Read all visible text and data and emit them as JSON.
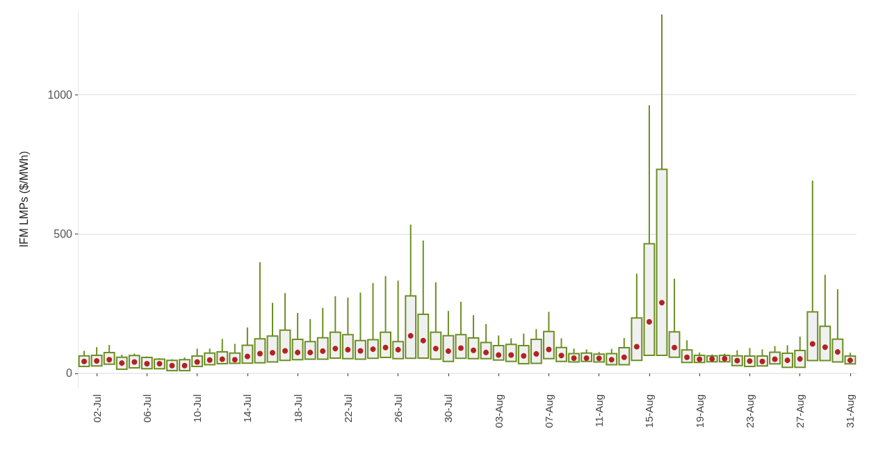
{
  "chart_data": {
    "type": "box",
    "ylabel": "IFM LMPs ($/MWh)",
    "categories": [
      null,
      "02-Jul",
      null,
      null,
      null,
      "06-Jul",
      null,
      null,
      null,
      "10-Jul",
      null,
      null,
      null,
      "14-Jul",
      null,
      null,
      null,
      "18-Jul",
      null,
      null,
      null,
      "22-Jul",
      null,
      null,
      null,
      "26-Jul",
      null,
      null,
      null,
      "30-Jul",
      null,
      null,
      null,
      "03-Aug",
      null,
      null,
      null,
      "07-Aug",
      null,
      null,
      null,
      "11-Aug",
      null,
      null,
      null,
      "15-Aug",
      null,
      null,
      null,
      "19-Aug",
      null,
      null,
      null,
      "23-Aug",
      null,
      null,
      null,
      "27-Aug",
      null,
      null,
      null,
      "31-Aug"
    ],
    "ylim": [
      -50,
      1300
    ],
    "yticks": [
      0,
      500,
      1000
    ],
    "grid": "y",
    "marker": "circle",
    "series": [
      {
        "color": "#6b8e23",
        "boxes": [
          {
            "low": 25,
            "q1": 25,
            "median": 43,
            "q3": 63,
            "high": 81
          },
          {
            "low": 27,
            "q1": 27,
            "median": 45,
            "q3": 65,
            "high": 94
          },
          {
            "low": 33,
            "q1": 33,
            "median": 49,
            "q3": 75,
            "high": 102
          },
          {
            "low": 15,
            "q1": 15,
            "median": 37,
            "q3": 58,
            "high": 67
          },
          {
            "low": 20,
            "q1": 20,
            "median": 41,
            "q3": 64,
            "high": 71
          },
          {
            "low": 17,
            "q1": 17,
            "median": 35,
            "q3": 57,
            "high": 61
          },
          {
            "low": 17,
            "q1": 17,
            "median": 35,
            "q3": 51,
            "high": 55
          },
          {
            "low": 10,
            "q1": 10,
            "median": 28,
            "q3": 47,
            "high": 51
          },
          {
            "low": 10,
            "q1": 10,
            "median": 28,
            "q3": 49,
            "high": 57
          },
          {
            "low": 25,
            "q1": 25,
            "median": 41,
            "q3": 62,
            "high": 89
          },
          {
            "low": 31,
            "q1": 31,
            "median": 48,
            "q3": 73,
            "high": 89
          },
          {
            "low": 35,
            "q1": 35,
            "median": 51,
            "q3": 77,
            "high": 124
          },
          {
            "low": 36,
            "q1": 36,
            "median": 49,
            "q3": 73,
            "high": 106
          },
          {
            "low": 37,
            "q1": 37,
            "median": 61,
            "q3": 101,
            "high": 165
          },
          {
            "low": 38,
            "q1": 38,
            "median": 71,
            "q3": 124,
            "high": 399
          },
          {
            "low": 41,
            "q1": 41,
            "median": 74,
            "q3": 134,
            "high": 253
          },
          {
            "low": 47,
            "q1": 47,
            "median": 81,
            "q3": 155,
            "high": 288
          },
          {
            "low": 49,
            "q1": 49,
            "median": 75,
            "q3": 122,
            "high": 217
          },
          {
            "low": 51,
            "q1": 51,
            "median": 75,
            "q3": 114,
            "high": 195
          },
          {
            "low": 51,
            "q1": 51,
            "median": 80,
            "q3": 128,
            "high": 235
          },
          {
            "low": 55,
            "q1": 55,
            "median": 89,
            "q3": 148,
            "high": 277
          },
          {
            "low": 53,
            "q1": 53,
            "median": 85,
            "q3": 139,
            "high": 272
          },
          {
            "low": 51,
            "q1": 51,
            "median": 81,
            "q3": 118,
            "high": 290
          },
          {
            "low": 54,
            "q1": 54,
            "median": 87,
            "q3": 121,
            "high": 324
          },
          {
            "low": 57,
            "q1": 57,
            "median": 93,
            "q3": 148,
            "high": 349
          },
          {
            "low": 53,
            "q1": 53,
            "median": 85,
            "q3": 114,
            "high": 333
          },
          {
            "low": 54,
            "q1": 54,
            "median": 135,
            "q3": 278,
            "high": 534
          },
          {
            "low": 55,
            "q1": 55,
            "median": 118,
            "q3": 212,
            "high": 477
          },
          {
            "low": 51,
            "q1": 51,
            "median": 89,
            "q3": 148,
            "high": 327
          },
          {
            "low": 43,
            "q1": 43,
            "median": 80,
            "q3": 135,
            "high": 224
          },
          {
            "low": 54,
            "q1": 54,
            "median": 91,
            "q3": 139,
            "high": 257
          },
          {
            "low": 53,
            "q1": 53,
            "median": 83,
            "q3": 127,
            "high": 209
          },
          {
            "low": 53,
            "q1": 53,
            "median": 75,
            "q3": 111,
            "high": 177
          },
          {
            "low": 48,
            "q1": 48,
            "median": 66,
            "q3": 100,
            "high": 136
          },
          {
            "low": 43,
            "q1": 43,
            "median": 66,
            "q3": 104,
            "high": 126
          },
          {
            "low": 35,
            "q1": 35,
            "median": 63,
            "q3": 100,
            "high": 143
          },
          {
            "low": 36,
            "q1": 36,
            "median": 70,
            "q3": 122,
            "high": 159
          },
          {
            "low": 53,
            "q1": 53,
            "median": 86,
            "q3": 150,
            "high": 221
          },
          {
            "low": 43,
            "q1": 43,
            "median": 64,
            "q3": 93,
            "high": 126
          },
          {
            "low": 41,
            "q1": 41,
            "median": 55,
            "q3": 71,
            "high": 89
          },
          {
            "low": 43,
            "q1": 43,
            "median": 55,
            "q3": 73,
            "high": 86
          },
          {
            "low": 41,
            "q1": 41,
            "median": 54,
            "q3": 69,
            "high": 77
          },
          {
            "low": 31,
            "q1": 31,
            "median": 49,
            "q3": 71,
            "high": 88
          },
          {
            "low": 31,
            "q1": 31,
            "median": 58,
            "q3": 92,
            "high": 127
          },
          {
            "low": 47,
            "q1": 47,
            "median": 96,
            "q3": 199,
            "high": 358
          },
          {
            "low": 65,
            "q1": 65,
            "median": 185,
            "q3": 465,
            "high": 962
          },
          {
            "low": 65,
            "q1": 65,
            "median": 254,
            "q3": 732,
            "high": 1288
          },
          {
            "low": 58,
            "q1": 58,
            "median": 93,
            "q3": 149,
            "high": 340
          },
          {
            "low": 39,
            "q1": 39,
            "median": 58,
            "q3": 84,
            "high": 119
          },
          {
            "low": 39,
            "q1": 39,
            "median": 51,
            "q3": 65,
            "high": 75
          },
          {
            "low": 42,
            "q1": 42,
            "median": 52,
            "q3": 63,
            "high": 68
          },
          {
            "low": 42,
            "q1": 42,
            "median": 53,
            "q3": 65,
            "high": 71
          },
          {
            "low": 28,
            "q1": 28,
            "median": 46,
            "q3": 63,
            "high": 83
          },
          {
            "low": 25,
            "q1": 25,
            "median": 44,
            "q3": 62,
            "high": 91
          },
          {
            "low": 27,
            "q1": 27,
            "median": 43,
            "q3": 62,
            "high": 86
          },
          {
            "low": 34,
            "q1": 34,
            "median": 51,
            "q3": 76,
            "high": 98
          },
          {
            "low": 22,
            "q1": 22,
            "median": 47,
            "q3": 72,
            "high": 101
          },
          {
            "low": 22,
            "q1": 22,
            "median": 52,
            "q3": 82,
            "high": 132
          },
          {
            "low": 46,
            "q1": 46,
            "median": 106,
            "q3": 221,
            "high": 692
          },
          {
            "low": 46,
            "q1": 46,
            "median": 94,
            "q3": 169,
            "high": 354
          },
          {
            "low": 41,
            "q1": 41,
            "median": 77,
            "q3": 123,
            "high": 302
          },
          {
            "low": 34,
            "q1": 34,
            "median": 47,
            "q3": 62,
            "high": 74
          }
        ]
      }
    ]
  }
}
